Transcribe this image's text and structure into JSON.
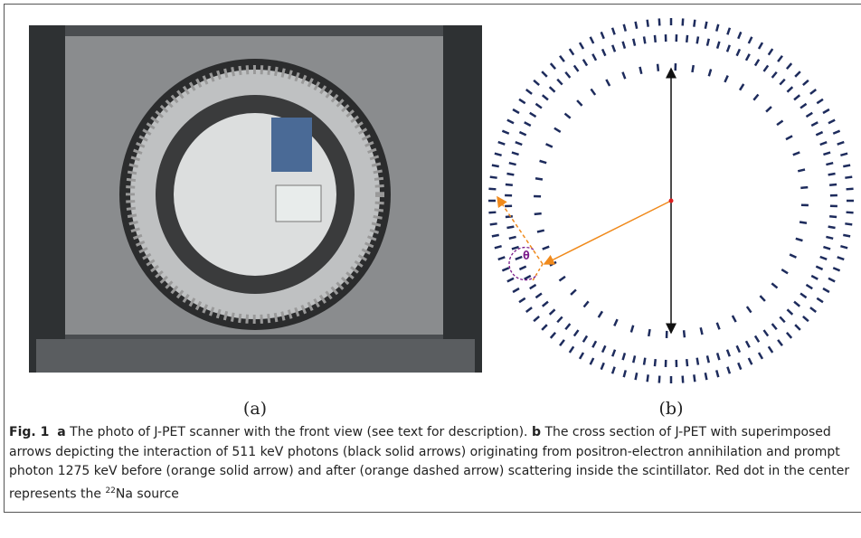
{
  "panels": [
    {
      "label": "(a)"
    },
    {
      "label": "(b)"
    }
  ],
  "diagram": {
    "angle_label": "θ"
  },
  "caption": {
    "figure": "Fig. 1",
    "parts": [
      {
        "key": "a",
        "text": "The photo of J-PET scanner with the front view (see text for description)."
      },
      {
        "key": "b",
        "text": "The cross section of J-PET with superimposed arrows depicting the interaction of 511 keV photons (black solid arrows) originating from positron-electron annihilation and prompt photon 1275 keV before (orange solid arrow) and after (orange dashed arrow) scattering inside the scintillator. Red dot in the center represents the"
      }
    ],
    "isotope_mass": "22",
    "isotope_tail": "Na source"
  }
}
